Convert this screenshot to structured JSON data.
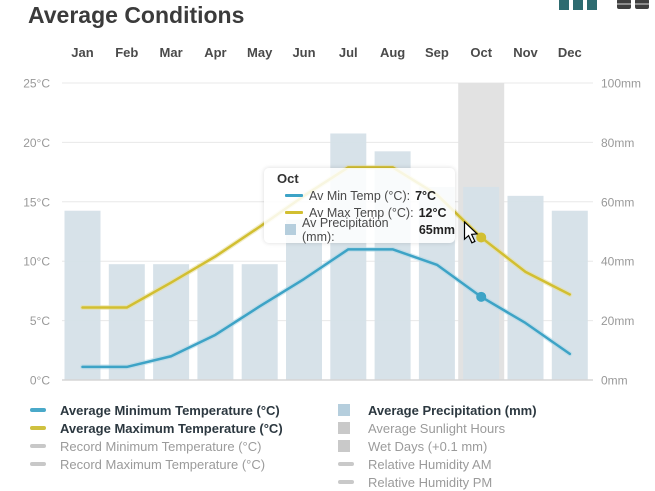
{
  "header": {
    "title": "Average Conditions"
  },
  "toolbar": {
    "icons": [
      "bar-chart-icon",
      "table-view-icon"
    ]
  },
  "chart_data": {
    "type": "bar+line",
    "categories": [
      "Jan",
      "Feb",
      "Mar",
      "Apr",
      "May",
      "Jun",
      "Jul",
      "Aug",
      "Sep",
      "Oct",
      "Nov",
      "Dec"
    ],
    "series": [
      {
        "name": "Average Minimum Temperature (°C)",
        "type": "line",
        "axis": "left",
        "values": [
          1.1,
          1.1,
          2.0,
          3.8,
          6.2,
          8.5,
          11.0,
          11.0,
          9.7,
          7.0,
          4.8,
          2.2
        ]
      },
      {
        "name": "Average Maximum Temperature (°C)",
        "type": "line",
        "axis": "left",
        "values": [
          6.1,
          6.1,
          8.2,
          10.4,
          12.9,
          15.5,
          17.9,
          17.9,
          15.6,
          12.0,
          9.1,
          7.2
        ]
      },
      {
        "name": "Average Precipitation (mm)",
        "type": "bar",
        "axis": "right",
        "values": [
          57,
          39,
          39,
          39,
          39,
          54,
          83,
          77,
          65,
          65,
          62,
          57
        ]
      }
    ],
    "y_left": {
      "max": 25,
      "ticks": [
        {
          "label": "25°C",
          "value": 25
        },
        {
          "label": "20°C",
          "value": 20
        },
        {
          "label": "15°C",
          "value": 15
        },
        {
          "label": "10°C",
          "value": 10
        },
        {
          "label": "5°C",
          "value": 5
        },
        {
          "label": "0°C",
          "value": 0
        }
      ]
    },
    "y_right": {
      "max": 100,
      "ticks": [
        {
          "label": "100mm",
          "value": 100
        },
        {
          "label": "80mm",
          "value": 80
        },
        {
          "label": "60mm",
          "value": 60
        },
        {
          "label": "40mm",
          "value": 40
        },
        {
          "label": "20mm",
          "value": 20
        },
        {
          "label": "0mm",
          "value": 0
        }
      ]
    },
    "highlight_index": 9,
    "grid": true,
    "colors": {
      "min_line": "#3da3c6",
      "min_halo": "#aed7e5",
      "max_line": "#d2bf31",
      "max_halo": "#e8df9d",
      "bar": "#d5e0e8",
      "highlight": "#e2e2e2",
      "gridline": "#e8e8e8",
      "axisline": "#d5d5d5"
    }
  },
  "tooltip": {
    "title": "Oct",
    "rows": [
      {
        "label": "Av Min Temp (°C):",
        "value": "7°C",
        "swatch": "line",
        "color": "#3da3c6"
      },
      {
        "label": "Av Max Temp (°C):",
        "value": "12°C",
        "swatch": "line",
        "color": "#d2bf31"
      },
      {
        "label": "Av Precipitation (mm):",
        "value": "65mm",
        "swatch": "square",
        "color": "#b5cedd"
      }
    ]
  },
  "legend": {
    "left": [
      {
        "label": "Average Minimum Temperature (°C)",
        "active": true,
        "swatch": "line",
        "color": "#4aa9c9"
      },
      {
        "label": "Average Maximum Temperature (°C)",
        "active": true,
        "swatch": "line",
        "color": "#cfc13f"
      },
      {
        "label": "Record Minimum Temperature (°C)",
        "active": false,
        "swatch": "line",
        "color": "#c8c8c8"
      },
      {
        "label": "Record Maximum Temperature (°C)",
        "active": false,
        "swatch": "line",
        "color": "#c8c8c8"
      }
    ],
    "right": [
      {
        "label": "Average Precipitation (mm)",
        "active": true,
        "swatch": "square",
        "color": "#b5cedd"
      },
      {
        "label": "Average Sunlight Hours",
        "active": false,
        "swatch": "square",
        "color": "#c9c9c9"
      },
      {
        "label": "Wet Days (+0.1 mm)",
        "active": false,
        "swatch": "square",
        "color": "#c9c9c9"
      },
      {
        "label": "Relative Humidity AM",
        "active": false,
        "swatch": "line",
        "color": "#c9c9c9"
      },
      {
        "label": "Relative Humidity PM",
        "active": false,
        "swatch": "line",
        "color": "#c9c9c9"
      }
    ]
  }
}
